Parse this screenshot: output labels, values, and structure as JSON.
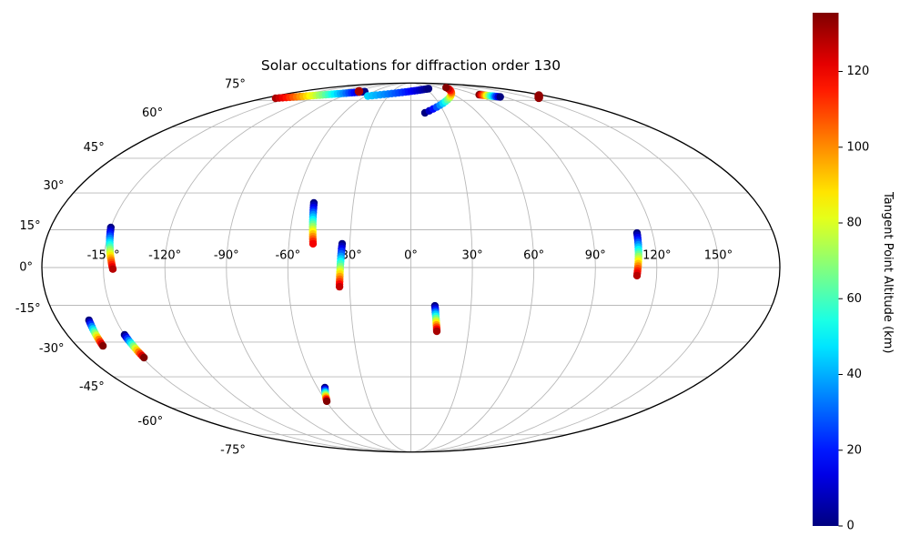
{
  "chart_data": {
    "type": "scatter",
    "projection": "mollweide",
    "title": "Solar occultations for diffraction order 130",
    "grid": {
      "on": true,
      "lon_ticks_deg": [
        -150,
        -120,
        -90,
        -60,
        -30,
        0,
        30,
        60,
        90,
        120,
        150
      ],
      "lon_labels": [
        "-150°",
        "-120°",
        "-90°",
        "-60°",
        "-30°",
        "0°",
        "30°",
        "60°",
        "90°",
        "120°",
        "150°"
      ],
      "lat_ticks_deg": [
        75,
        60,
        45,
        30,
        15,
        0,
        -15,
        -30,
        -45,
        -60,
        -75
      ],
      "lat_labels": [
        "75°",
        "60°",
        "45°",
        "30°",
        "15°",
        "0°",
        "-15°",
        "-30°",
        "-45°",
        "-60°",
        "-75°"
      ]
    },
    "colorbar": {
      "label": "Tangent Point Altitude (km)",
      "cmap": "jet",
      "vmin": 0,
      "vmax": 135.5,
      "ticks": [
        0,
        20,
        40,
        60,
        80,
        100,
        120
      ],
      "tick_labels": [
        "0",
        "20",
        "40",
        "60",
        "80",
        "100",
        "120"
      ]
    },
    "tracks": [
      {
        "id": "pacific-equator",
        "lon": [
          -149.9,
          -145.4
        ],
        "lat": [
          15.9,
          -0.6
        ],
        "alt": [
          0,
          128
        ],
        "n": 20
      },
      {
        "id": "mid-atlantic-n",
        "lon": [
          -50.5,
          -48.1
        ],
        "lat": [
          25.9,
          9.4
        ],
        "alt": [
          0,
          120
        ],
        "n": 18
      },
      {
        "id": "atlantic-eq",
        "lon": [
          -33.8,
          -35.0
        ],
        "lat": [
          9.4,
          -7.6
        ],
        "alt": [
          0,
          126
        ],
        "n": 18
      },
      {
        "id": "atlantic-s",
        "lon": [
          12.0,
          13.5
        ],
        "lat": [
          -15.2,
          -25.5
        ],
        "alt": [
          0,
          130
        ],
        "n": 13
      },
      {
        "id": "south-pacific-1",
        "lon": [
          -163.8,
          -165.9
        ],
        "lat": [
          -21.0,
          -31.6
        ],
        "alt": [
          0,
          135
        ],
        "n": 13
      },
      {
        "id": "south-pacific-2",
        "lon": [
          -150.0,
          -149.2
        ],
        "lat": [
          -27.0,
          -36.6
        ],
        "alt": [
          0,
          135
        ],
        "n": 13
      },
      {
        "id": "south-atlantic",
        "lon": [
          -55.3,
          -59.5
        ],
        "lat": [
          -50.0,
          -56.5
        ],
        "alt": [
          0,
          135
        ],
        "n": 10
      },
      {
        "id": "asia-eq",
        "lon": [
          112.3,
          110.4
        ],
        "lat": [
          13.7,
          -3.2
        ],
        "alt": [
          0,
          128
        ],
        "n": 19
      },
      {
        "id": "arctic-west",
        "lon": [
          -166.0,
          -74.5
        ],
        "lat": [
          76.4,
          81.1
        ],
        "alt": [
          130,
          0
        ],
        "n": 30
      },
      {
        "id": "arctic-red-dot",
        "lon": [
          -85.0,
          -85.0
        ],
        "lat": [
          81.3,
          81.3
        ],
        "alt": [
          130,
          130
        ],
        "n": 1
      },
      {
        "id": "arctic-mid",
        "lon": [
          -57.0,
          35.0
        ],
        "lat": [
          77.9,
          83.5
        ],
        "alt": [
          45,
          0
        ],
        "n": 20
      },
      {
        "id": "arctic-vertical",
        "lon": [
          12.6,
          78.0
        ],
        "lat": [
          67.5,
          84.5
        ],
        "alt": [
          0,
          135
        ],
        "n": 16
      },
      {
        "id": "arctic-east",
        "lon": [
          95.0,
          114.6
        ],
        "lat": [
          78.8,
          77.3
        ],
        "alt": [
          135,
          0
        ],
        "n": 12
      },
      {
        "id": "arctic-dot-1",
        "lon": [
          172.0,
          172.0
        ],
        "lat": [
          78.2,
          78.2
        ],
        "alt": [
          133,
          133
        ],
        "n": 1
      },
      {
        "id": "arctic-dot-2",
        "lon": [
          160.0,
          160.0
        ],
        "lat": [
          76.8,
          76.8
        ],
        "alt": [
          133,
          133
        ],
        "n": 1
      }
    ]
  }
}
